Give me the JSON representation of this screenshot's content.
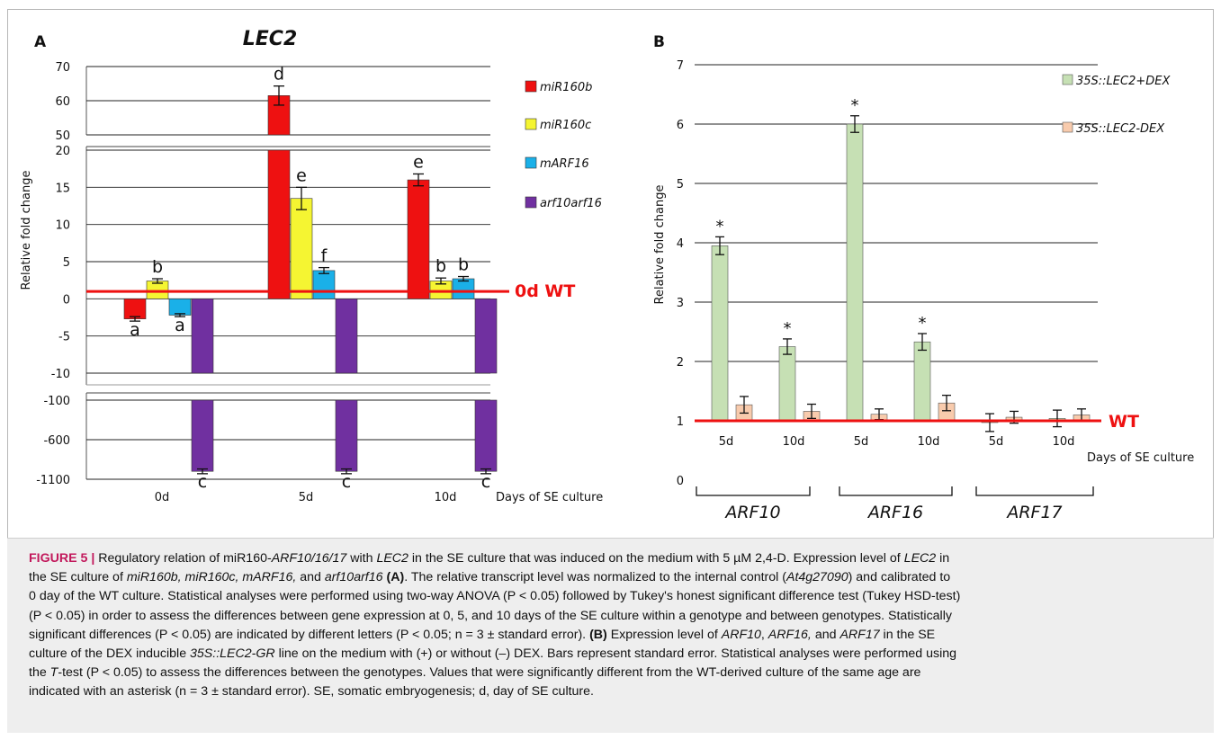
{
  "panelA": {
    "label": "A",
    "title": "LEC2",
    "ylabel": "Relative fold change",
    "xlabel": "Days of SE culture",
    "ref_label": "0d WT",
    "legend": [
      "miR160b",
      "miR160c",
      "mARF16",
      "arf10arf16"
    ]
  },
  "panelB": {
    "label": "B",
    "ylabel": "Relative fold change",
    "xlabel": "Days of SE culture",
    "ref_label": "WT",
    "legend": [
      "35S::LEC2+DEX",
      "35S::LEC2-DEX"
    ],
    "groups": [
      "ARF10",
      "ARF16",
      "ARF17"
    ]
  },
  "colors": {
    "miR160b": "#ee1111",
    "miR160c": "#f5f532",
    "mARF16": "#1ab0e8",
    "arf10arf16": "#7030a0",
    "plusDEX": "#c6e0b4",
    "minusDEX": "#f8cbad",
    "reference": "#ee1111",
    "grid": "#222222"
  },
  "chart_data": [
    {
      "type": "bar",
      "title": "LEC2",
      "xlabel": "Days of SE culture",
      "ylabel": "Relative fold change",
      "categories": [
        "0d",
        "5d",
        "10d"
      ],
      "series": [
        {
          "name": "miR160b",
          "values": [
            -2.7,
            61.5,
            16.0
          ],
          "errors": [
            0.3,
            2.8,
            0.8
          ],
          "letters": [
            "a",
            "d",
            "e"
          ]
        },
        {
          "name": "miR160c",
          "values": [
            2.4,
            13.5,
            2.4
          ],
          "errors": [
            0.3,
            1.5,
            0.4
          ],
          "letters": [
            "b",
            "e",
            "b"
          ]
        },
        {
          "name": "mARF16",
          "values": [
            -2.2,
            3.8,
            2.7
          ],
          "errors": [
            0.2,
            0.4,
            0.3
          ],
          "letters": [
            "a",
            "f",
            "b"
          ]
        },
        {
          "name": "arf10arf16",
          "values": [
            -1000,
            -1000,
            -1000
          ],
          "errors": [
            30,
            30,
            30
          ],
          "letters": [
            "c",
            "c",
            "c"
          ]
        }
      ],
      "broken_axis": {
        "upper": {
          "ticks": [
            50,
            60,
            70
          ]
        },
        "middle": {
          "ticks": [
            -10,
            -5,
            0,
            5,
            10,
            15,
            20
          ]
        },
        "lower": {
          "ticks": [
            -1100,
            -600,
            -100
          ]
        }
      },
      "reference_line": {
        "label": "0d WT",
        "value": 1
      }
    },
    {
      "type": "bar",
      "xlabel": "Days of SE culture",
      "ylabel": "Relative fold change",
      "ylim": [
        0,
        7
      ],
      "yticks": [
        0,
        1,
        2,
        3,
        4,
        5,
        6,
        7
      ],
      "groups": [
        "ARF10",
        "ARF16",
        "ARF17"
      ],
      "categories": [
        "5d",
        "10d",
        "5d",
        "10d",
        "5d",
        "10d"
      ],
      "series": [
        {
          "name": "35S::LEC2+DEX",
          "values": [
            3.95,
            2.25,
            6.0,
            2.33,
            0.97,
            1.04
          ],
          "errors": [
            0.15,
            0.13,
            0.14,
            0.14,
            0.15,
            0.14
          ],
          "significant": [
            true,
            true,
            true,
            true,
            false,
            false
          ]
        },
        {
          "name": "35S::LEC2-DEX",
          "values": [
            1.27,
            1.16,
            1.11,
            1.3,
            1.06,
            1.1
          ],
          "errors": [
            0.14,
            0.12,
            0.09,
            0.13,
            0.1,
            0.1
          ],
          "significant": [
            false,
            false,
            false,
            false,
            false,
            false
          ]
        }
      ],
      "significance_marker": "*",
      "reference_line": {
        "label": "WT",
        "value": 1
      }
    }
  ],
  "caption": {
    "l1": [
      "FIGURE 5 | ",
      "Regulatory relation of miR160-",
      "ARF10/16/17",
      " with ",
      "LEC2",
      " in the SE culture that was induced on the medium with 5 µM 2,4-D. Expression level of ",
      "LEC2",
      " in"
    ],
    "l2": [
      "the SE culture of ",
      "miR160b, miR160c, mARF16,",
      " and ",
      "arf10arf16",
      " ",
      "(A)",
      ". The relative transcript level was normalized to the internal control (",
      "At4g27090",
      ") and calibrated to"
    ],
    "l3": "0 day of the WT culture. Statistical analyses were performed using two-way ANOVA (P < 0.05) followed by Tukey's honest significant difference test (Tukey HSD-test)",
    "l4": "(P < 0.05) in order to assess the differences between gene expression at 0, 5, and 10 days of the SE culture within a genotype and between genotypes. Statistically",
    "l5": [
      "significant differences (P < 0.05) are indicated by different letters (P < 0.05; n = 3 ± standard error). ",
      "(B)",
      " Expression level of ",
      "ARF10",
      ", ",
      "ARF16,",
      " and ",
      "ARF17",
      " in the SE"
    ],
    "l6": [
      "culture of the DEX inducible ",
      "35S::LEC2-GR",
      " line on the medium with (+) or without (–) DEX. Bars represent standard error. Statistical analyses were performed using"
    ],
    "l7": [
      "the ",
      "T",
      "-test (P < 0.05) to assess the differences between the genotypes. Values that were significantly different from the WT-derived culture of the same age are"
    ],
    "l8": "indicated with an asterisk (n = 3 ± standard error). SE, somatic embryogenesis; d, day of SE culture."
  }
}
